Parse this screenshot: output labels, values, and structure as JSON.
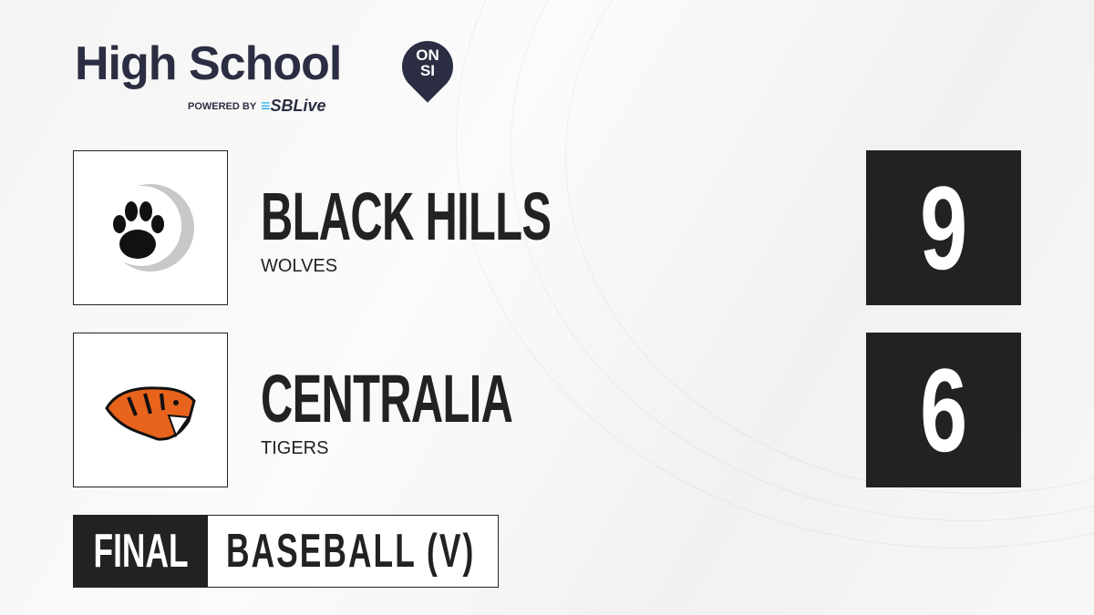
{
  "brand": {
    "title": "High School",
    "badge_top": "ON",
    "badge_bottom": "SI",
    "powered_by": "POWERED BY",
    "partner": "SBLive"
  },
  "teams": [
    {
      "name": "BLACK HILLS",
      "mascot": "WOLVES",
      "score": "9",
      "logo_icon": "wolf-paw-icon"
    },
    {
      "name": "CENTRALIA",
      "mascot": "TIGERS",
      "score": "6",
      "logo_icon": "tiger-head-icon"
    }
  ],
  "footer": {
    "status": "FINAL",
    "sport": "BASEBALL (V)"
  },
  "colors": {
    "dark": "#222222",
    "brand": "#2b2e42",
    "accent": "#1ea7e6",
    "tiger_orange": "#e8631c"
  }
}
